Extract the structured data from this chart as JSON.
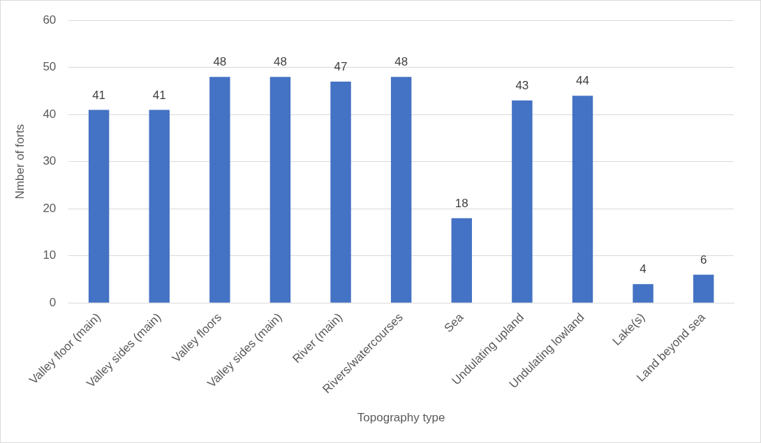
{
  "chart_data": {
    "type": "bar",
    "xlabel": "Topography type",
    "ylabel": "Nmber of forts",
    "categories": [
      "Valley floor (main)",
      "Valley sides (main)",
      "Valley floors",
      "Valley sides (main)",
      "River (main)",
      "Rivers/watercourses",
      "Sea",
      "Undulating upland",
      "Undulating lowland",
      "Lake(s)",
      "Land beyond sea"
    ],
    "values": [
      41,
      41,
      48,
      48,
      47,
      48,
      18,
      43,
      44,
      4,
      6
    ],
    "color": "#4472c4",
    "ylim": [
      0,
      60
    ],
    "yticks": [
      0,
      10,
      20,
      30,
      40,
      50,
      60
    ],
    "grid": "y",
    "data_labels": true,
    "legend": false
  }
}
